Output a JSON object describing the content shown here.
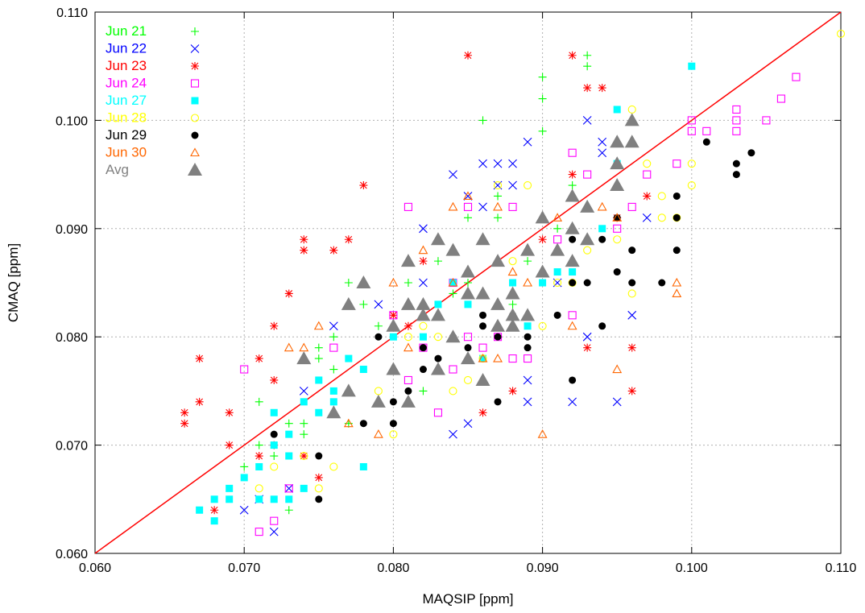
{
  "chart_data": {
    "type": "scatter",
    "title": "",
    "xlabel": "MAQSIP [ppm]",
    "ylabel": "CMAQ [ppm]",
    "xlim": [
      0.06,
      0.11
    ],
    "ylim": [
      0.06,
      0.11
    ],
    "xticks": [
      "0.060",
      "0.070",
      "0.080",
      "0.090",
      "0.100",
      "0.110"
    ],
    "yticks": [
      "0.060",
      "0.070",
      "0.080",
      "0.090",
      "0.100",
      "0.110"
    ],
    "grid": true,
    "legend_position": "top-left",
    "reference_line": {
      "x": [
        0.06,
        0.11
      ],
      "y": [
        0.06,
        0.11
      ],
      "color": "#ff0000"
    },
    "series": [
      {
        "name": "Jun 21",
        "marker": "plus",
        "color": "#00ff00",
        "x": [
          0.07,
          0.071,
          0.071,
          0.072,
          0.073,
          0.073,
          0.074,
          0.074,
          0.075,
          0.075,
          0.076,
          0.076,
          0.077,
          0.077,
          0.078,
          0.079,
          0.081,
          0.082,
          0.083,
          0.084,
          0.085,
          0.085,
          0.086,
          0.087,
          0.087,
          0.088,
          0.089,
          0.09,
          0.09,
          0.09,
          0.091,
          0.092,
          0.093,
          0.093
        ],
        "y": [
          0.068,
          0.074,
          0.07,
          0.069,
          0.072,
          0.064,
          0.072,
          0.071,
          0.079,
          0.078,
          0.08,
          0.077,
          0.085,
          0.072,
          0.083,
          0.081,
          0.085,
          0.075,
          0.087,
          0.084,
          0.091,
          0.085,
          0.1,
          0.093,
          0.091,
          0.083,
          0.087,
          0.104,
          0.102,
          0.099,
          0.09,
          0.094,
          0.106,
          0.105
        ]
      },
      {
        "name": "Jun 22",
        "marker": "cross",
        "color": "#0000ff",
        "x": [
          0.07,
          0.071,
          0.072,
          0.073,
          0.074,
          0.076,
          0.079,
          0.082,
          0.082,
          0.084,
          0.085,
          0.086,
          0.086,
          0.087,
          0.087,
          0.088,
          0.088,
          0.089,
          0.089,
          0.091,
          0.092,
          0.093,
          0.093,
          0.094,
          0.094,
          0.095,
          0.096,
          0.097,
          0.085,
          0.084,
          0.089
        ],
        "y": [
          0.064,
          0.065,
          0.062,
          0.066,
          0.075,
          0.081,
          0.083,
          0.09,
          0.085,
          0.095,
          0.093,
          0.096,
          0.092,
          0.096,
          0.094,
          0.096,
          0.094,
          0.098,
          0.076,
          0.085,
          0.074,
          0.1,
          0.08,
          0.097,
          0.098,
          0.074,
          0.082,
          0.091,
          0.072,
          0.071,
          0.074
        ]
      },
      {
        "name": "Jun 23",
        "marker": "star",
        "color": "#ff0000",
        "x": [
          0.066,
          0.066,
          0.067,
          0.067,
          0.069,
          0.069,
          0.071,
          0.072,
          0.072,
          0.072,
          0.073,
          0.074,
          0.074,
          0.074,
          0.075,
          0.076,
          0.077,
          0.078,
          0.08,
          0.081,
          0.082,
          0.085,
          0.086,
          0.088,
          0.09,
          0.092,
          0.092,
          0.093,
          0.093,
          0.094,
          0.095,
          0.096,
          0.096,
          0.097,
          0.068,
          0.071
        ],
        "y": [
          0.073,
          0.072,
          0.078,
          0.074,
          0.073,
          0.07,
          0.078,
          0.081,
          0.076,
          0.07,
          0.084,
          0.089,
          0.088,
          0.069,
          0.067,
          0.088,
          0.089,
          0.094,
          0.082,
          0.081,
          0.087,
          0.106,
          0.073,
          0.075,
          0.089,
          0.106,
          0.095,
          0.103,
          0.079,
          0.103,
          0.091,
          0.079,
          0.075,
          0.093,
          0.064,
          0.069
        ]
      },
      {
        "name": "Jun 24",
        "marker": "square",
        "color": "#ff00ff",
        "x": [
          0.07,
          0.071,
          0.072,
          0.073,
          0.076,
          0.08,
          0.081,
          0.081,
          0.082,
          0.083,
          0.084,
          0.085,
          0.085,
          0.086,
          0.087,
          0.088,
          0.088,
          0.089,
          0.091,
          0.092,
          0.092,
          0.093,
          0.095,
          0.096,
          0.097,
          0.099,
          0.1,
          0.1,
          0.101,
          0.103,
          0.103,
          0.103,
          0.105,
          0.106,
          0.107,
          0.084
        ],
        "y": [
          0.077,
          0.062,
          0.063,
          0.066,
          0.079,
          0.082,
          0.092,
          0.076,
          0.079,
          0.073,
          0.077,
          0.08,
          0.092,
          0.079,
          0.08,
          0.092,
          0.078,
          0.078,
          0.089,
          0.097,
          0.082,
          0.095,
          0.09,
          0.092,
          0.095,
          0.096,
          0.1,
          0.099,
          0.099,
          0.101,
          0.1,
          0.099,
          0.1,
          0.102,
          0.104,
          0.085
        ]
      },
      {
        "name": "Jun 27",
        "marker": "filled-square",
        "color": "#00ffff",
        "x": [
          0.067,
          0.068,
          0.068,
          0.069,
          0.069,
          0.07,
          0.071,
          0.071,
          0.072,
          0.072,
          0.073,
          0.073,
          0.074,
          0.074,
          0.075,
          0.075,
          0.076,
          0.076,
          0.077,
          0.078,
          0.078,
          0.08,
          0.082,
          0.083,
          0.084,
          0.085,
          0.086,
          0.088,
          0.089,
          0.09,
          0.091,
          0.092,
          0.094,
          0.095,
          0.095,
          0.1,
          0.072,
          0.073
        ],
        "y": [
          0.064,
          0.065,
          0.063,
          0.066,
          0.065,
          0.067,
          0.068,
          0.065,
          0.073,
          0.07,
          0.071,
          0.065,
          0.074,
          0.066,
          0.076,
          0.073,
          0.075,
          0.074,
          0.078,
          0.068,
          0.077,
          0.08,
          0.08,
          0.083,
          0.085,
          0.083,
          0.078,
          0.085,
          0.081,
          0.085,
          0.086,
          0.086,
          0.09,
          0.101,
          0.096,
          0.105,
          0.065,
          0.069
        ]
      },
      {
        "name": "Jun 28",
        "marker": "circle",
        "color": "#ffff00",
        "x": [
          0.071,
          0.072,
          0.074,
          0.075,
          0.076,
          0.079,
          0.08,
          0.081,
          0.082,
          0.083,
          0.084,
          0.085,
          0.086,
          0.087,
          0.088,
          0.089,
          0.09,
          0.091,
          0.092,
          0.093,
          0.095,
          0.096,
          0.097,
          0.098,
          0.098,
          0.099,
          0.1,
          0.1,
          0.11,
          0.096
        ],
        "y": [
          0.066,
          0.068,
          0.069,
          0.066,
          0.068,
          0.075,
          0.071,
          0.08,
          0.081,
          0.08,
          0.075,
          0.076,
          0.078,
          0.094,
          0.087,
          0.094,
          0.081,
          0.085,
          0.085,
          0.088,
          0.089,
          0.101,
          0.096,
          0.093,
          0.091,
          0.091,
          0.096,
          0.094,
          0.108,
          0.084
        ]
      },
      {
        "name": "Jun 29",
        "marker": "filled-circle",
        "color": "#000000",
        "x": [
          0.072,
          0.075,
          0.075,
          0.078,
          0.079,
          0.08,
          0.08,
          0.081,
          0.082,
          0.082,
          0.083,
          0.084,
          0.085,
          0.086,
          0.086,
          0.087,
          0.087,
          0.088,
          0.089,
          0.089,
          0.091,
          0.092,
          0.092,
          0.093,
          0.094,
          0.094,
          0.095,
          0.095,
          0.096,
          0.096,
          0.098,
          0.099,
          0.099,
          0.099,
          0.101,
          0.103,
          0.103,
          0.104,
          0.092
        ],
        "y": [
          0.071,
          0.069,
          0.065,
          0.072,
          0.08,
          0.074,
          0.072,
          0.075,
          0.079,
          0.077,
          0.078,
          0.08,
          0.079,
          0.082,
          0.081,
          0.08,
          0.074,
          0.082,
          0.08,
          0.079,
          0.082,
          0.089,
          0.085,
          0.085,
          0.089,
          0.081,
          0.091,
          0.086,
          0.088,
          0.085,
          0.085,
          0.093,
          0.091,
          0.088,
          0.098,
          0.096,
          0.095,
          0.097,
          0.076
        ]
      },
      {
        "name": "Jun 30",
        "marker": "triangle",
        "color": "#ff6600",
        "x": [
          0.073,
          0.074,
          0.075,
          0.077,
          0.079,
          0.08,
          0.081,
          0.082,
          0.083,
          0.084,
          0.085,
          0.086,
          0.087,
          0.087,
          0.088,
          0.089,
          0.09,
          0.091,
          0.092,
          0.092,
          0.093,
          0.094,
          0.095,
          0.095,
          0.099,
          0.099,
          0.084,
          0.087,
          0.09
        ],
        "y": [
          0.079,
          0.079,
          0.081,
          0.072,
          0.071,
          0.085,
          0.079,
          0.088,
          0.089,
          0.092,
          0.093,
          0.078,
          0.092,
          0.081,
          0.086,
          0.085,
          0.091,
          0.091,
          0.09,
          0.081,
          0.092,
          0.092,
          0.077,
          0.091,
          0.085,
          0.084,
          0.085,
          0.078,
          0.071
        ]
      },
      {
        "name": "Avg",
        "marker": "filled-triangle",
        "color": "#808080",
        "x": [
          0.074,
          0.076,
          0.077,
          0.077,
          0.078,
          0.079,
          0.08,
          0.08,
          0.081,
          0.081,
          0.082,
          0.082,
          0.083,
          0.083,
          0.084,
          0.084,
          0.085,
          0.085,
          0.086,
          0.086,
          0.086,
          0.087,
          0.087,
          0.087,
          0.088,
          0.088,
          0.088,
          0.089,
          0.089,
          0.09,
          0.09,
          0.091,
          0.092,
          0.092,
          0.092,
          0.093,
          0.093,
          0.095,
          0.095,
          0.095,
          0.096,
          0.096,
          0.085,
          0.081,
          0.083
        ],
        "y": [
          0.078,
          0.073,
          0.083,
          0.075,
          0.085,
          0.074,
          0.077,
          0.081,
          0.074,
          0.087,
          0.082,
          0.083,
          0.089,
          0.077,
          0.088,
          0.08,
          0.084,
          0.078,
          0.089,
          0.084,
          0.076,
          0.087,
          0.083,
          0.081,
          0.084,
          0.081,
          0.082,
          0.088,
          0.082,
          0.091,
          0.086,
          0.088,
          0.093,
          0.09,
          0.087,
          0.092,
          0.089,
          0.094,
          0.098,
          0.096,
          0.1,
          0.098,
          0.086,
          0.083,
          0.082
        ]
      }
    ]
  }
}
